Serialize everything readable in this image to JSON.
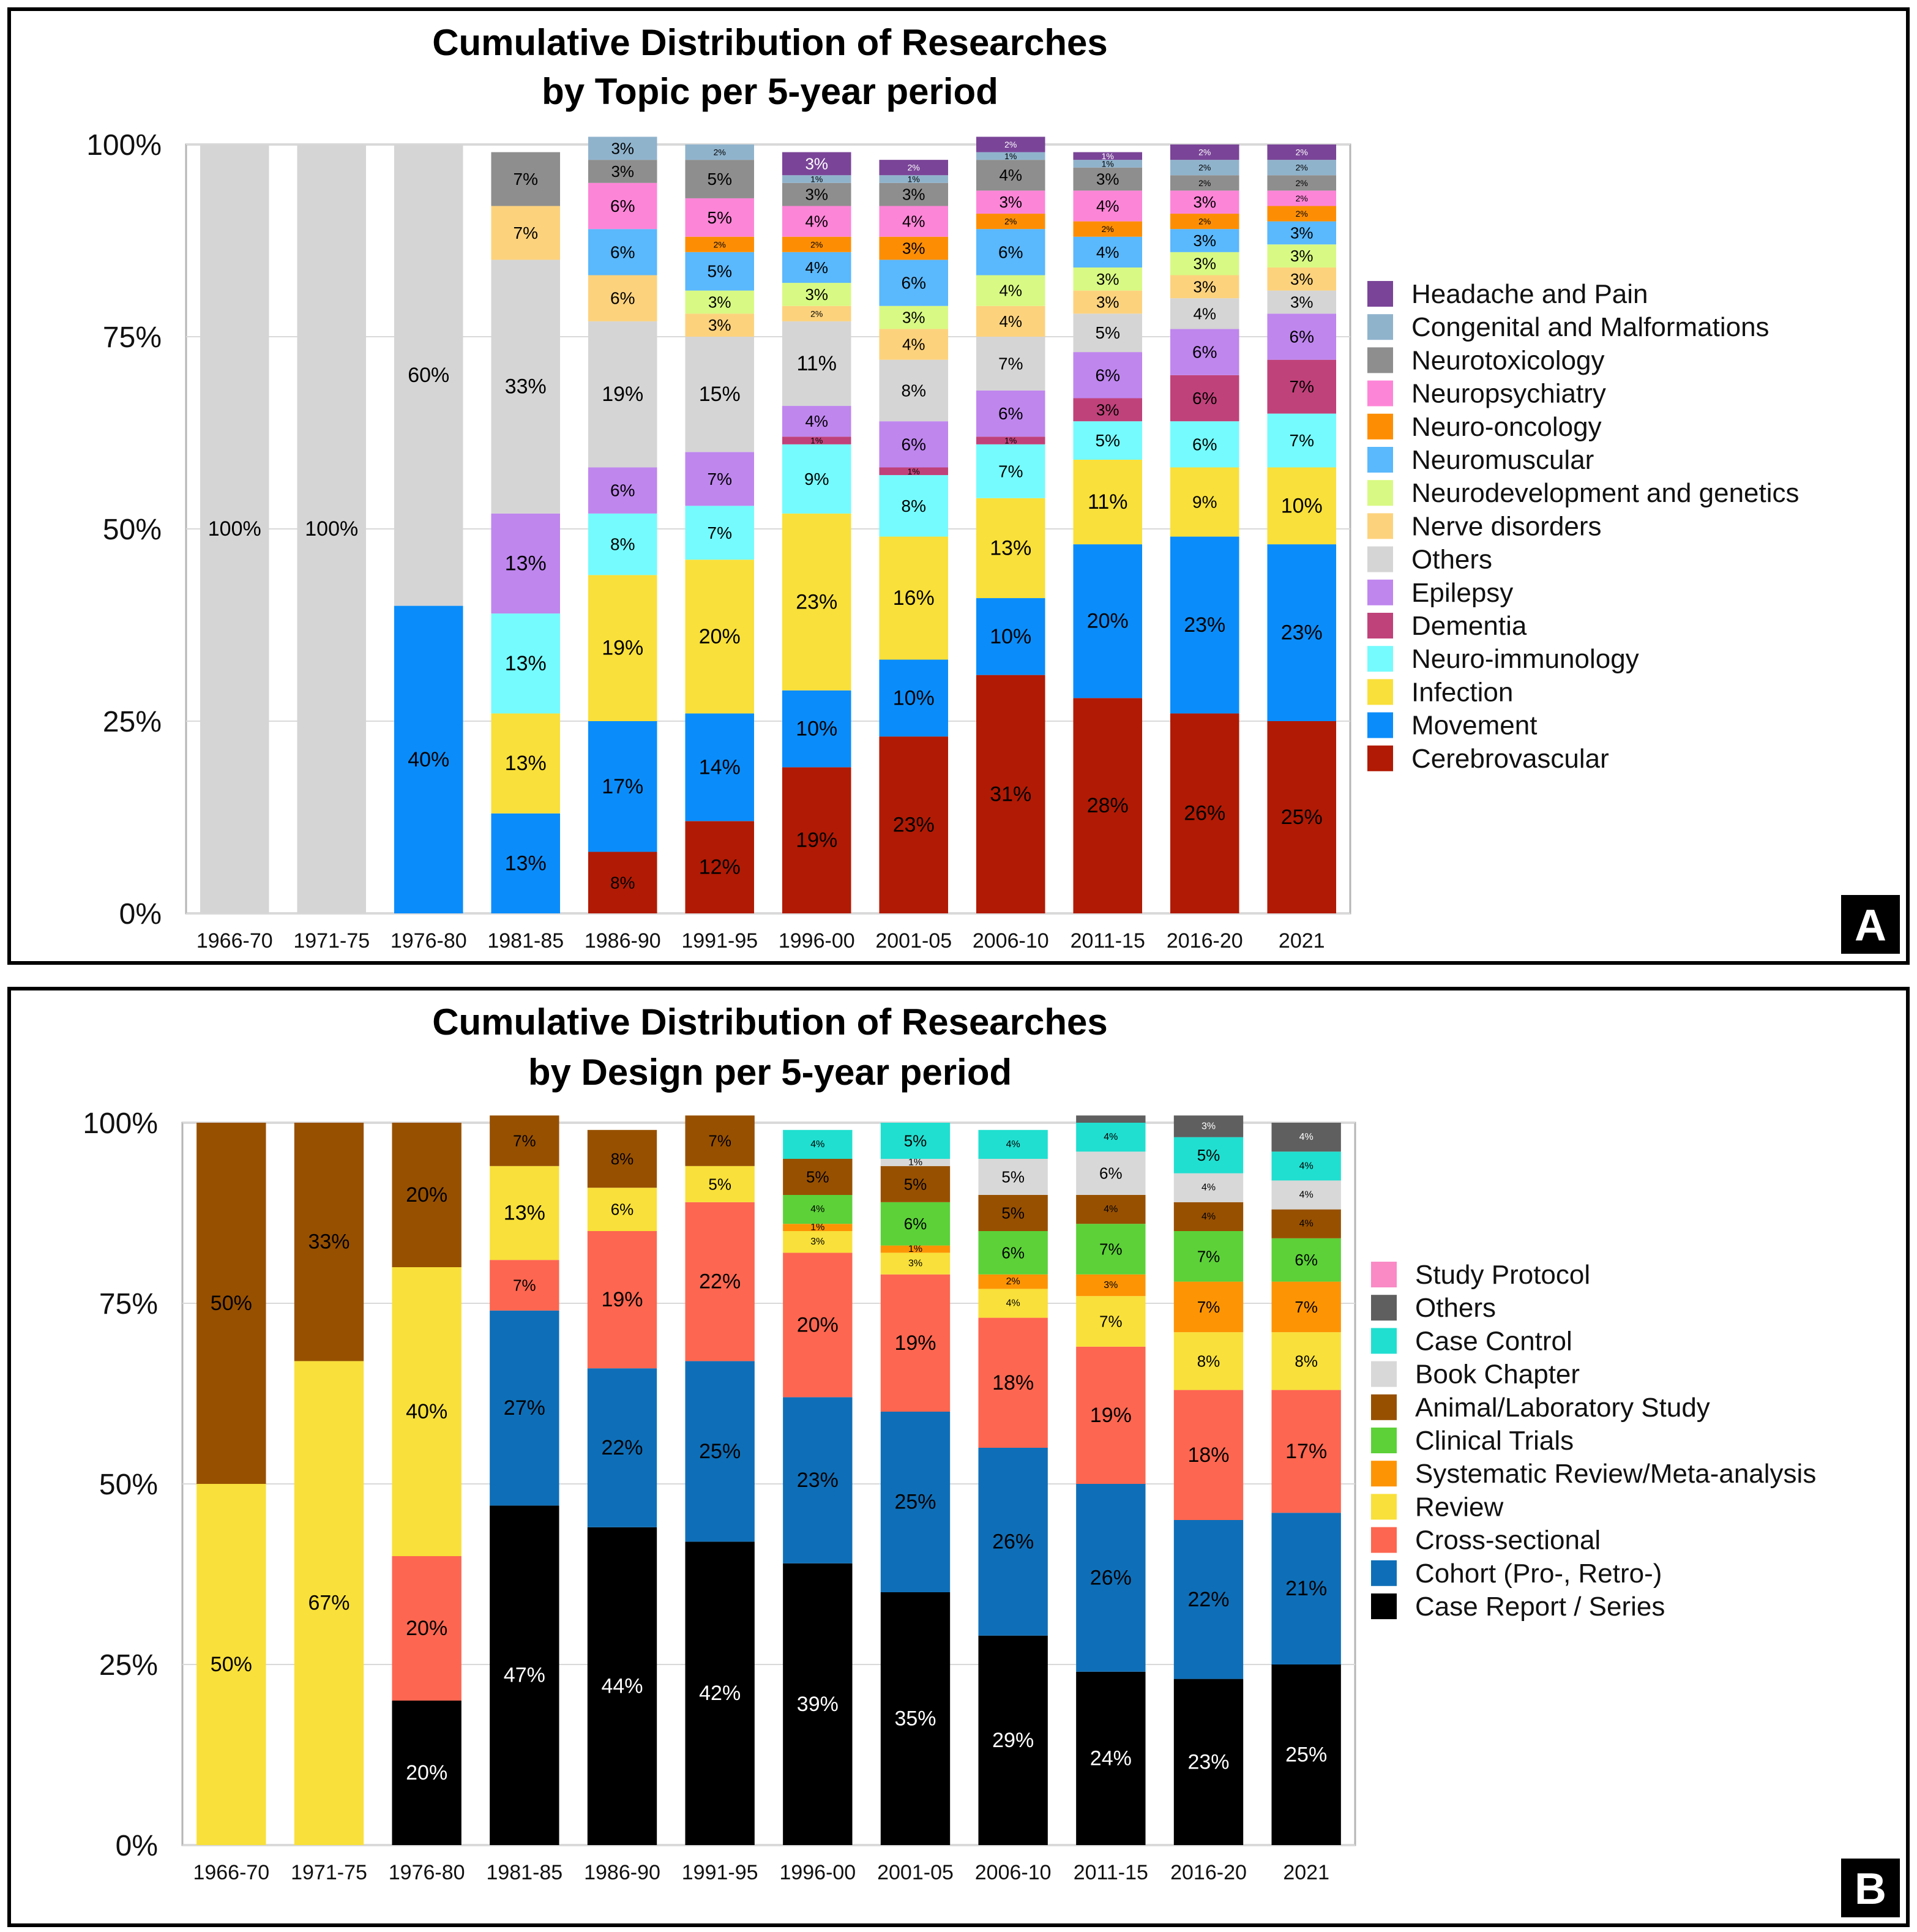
{
  "chart_data": [
    {
      "type": "bar",
      "stacked": true,
      "title_lines": [
        "Cumulative Distribution of Researches",
        "by Topic per 5-year period"
      ],
      "panel_letter": "A",
      "categories": [
        "1966-70",
        "1971-75",
        "1976-80",
        "1981-85",
        "1986-90",
        "1991-95",
        "1996-00",
        "2001-05",
        "2006-10",
        "2011-15",
        "2016-20",
        "2021"
      ],
      "y_ticks": [
        "0%",
        "25%",
        "50%",
        "75%",
        "100%"
      ],
      "ylim": [
        0,
        100
      ],
      "grid": true,
      "legend_position": "right",
      "series": [
        {
          "name": "Cerebrovascular",
          "color": "#b11a04",
          "label_color": "#000000",
          "values": [
            0,
            0,
            0,
            0,
            8,
            12,
            19,
            23,
            31,
            28,
            26,
            25
          ],
          "labels": [
            null,
            null,
            null,
            null,
            "8%",
            "12%",
            "19%",
            "23%",
            "31%",
            "28%",
            "26%",
            "25%"
          ]
        },
        {
          "name": "Movement",
          "color": "#0a8dfa",
          "label_color": "#000000",
          "values": [
            0,
            0,
            40,
            13,
            17,
            14,
            10,
            10,
            10,
            20,
            23,
            23
          ],
          "labels": [
            null,
            null,
            "40%",
            "13%",
            "17%",
            "14%",
            "10%",
            "10%",
            "10%",
            "20%",
            "23%",
            "23%"
          ]
        },
        {
          "name": "Infection",
          "color": "#f9e03a",
          "label_color": "#000000",
          "values": [
            0,
            0,
            0,
            13,
            19,
            20,
            23,
            16,
            13,
            11,
            9,
            10
          ],
          "labels": [
            null,
            null,
            null,
            "13%",
            "19%",
            "20%",
            "23%",
            "16%",
            "13%",
            "11%",
            "9%",
            "10%"
          ]
        },
        {
          "name": "Neuro-immunology",
          "color": "#75fbfd",
          "label_color": "#000000",
          "values": [
            0,
            0,
            0,
            13,
            8,
            7,
            9,
            8,
            7,
            5,
            6,
            7
          ],
          "labels": [
            null,
            null,
            null,
            "13%",
            "8%",
            "7%",
            "9%",
            "8%",
            "7%",
            "5%",
            "6%",
            "7%"
          ]
        },
        {
          "name": "Dementia",
          "color": "#c0427a",
          "label_color": "#000000",
          "values": [
            0,
            0,
            0,
            0,
            0,
            0,
            1,
            1,
            1,
            3,
            6,
            7
          ],
          "labels": [
            null,
            null,
            null,
            null,
            null,
            null,
            "1%",
            "1%",
            "1%",
            "3%",
            "6%",
            "7%"
          ]
        },
        {
          "name": "Epilepsy",
          "color": "#bf86ee",
          "label_color": "#000000",
          "values": [
            0,
            0,
            0,
            13,
            6,
            7,
            4,
            6,
            6,
            6,
            6,
            6
          ],
          "labels": [
            null,
            null,
            null,
            "13%",
            "6%",
            "7%",
            "4%",
            "6%",
            "6%",
            "6%",
            "6%",
            "6%"
          ]
        },
        {
          "name": "Others",
          "color": "#d5d5d5",
          "label_color": "#000000",
          "values": [
            100,
            100,
            60,
            33,
            19,
            15,
            11,
            8,
            7,
            5,
            4,
            3
          ],
          "labels": [
            "100%",
            "100%",
            "60%",
            "33%",
            "19%",
            "15%",
            "11%",
            "8%",
            "7%",
            "5%",
            "4%",
            "3%"
          ]
        },
        {
          "name": "Nerve disorders",
          "color": "#fcd27d",
          "label_color": "#000000",
          "values": [
            0,
            0,
            0,
            7,
            6,
            3,
            2,
            4,
            4,
            3,
            3,
            3
          ],
          "labels": [
            null,
            null,
            null,
            "7%",
            "6%",
            "3%",
            "2%",
            "4%",
            "4%",
            "3%",
            "3%",
            "3%"
          ]
        },
        {
          "name": "Neurodevelopment and genetics",
          "color": "#d8f983",
          "label_color": "#000000",
          "values": [
            0,
            0,
            0,
            0,
            0,
            3,
            3,
            3,
            4,
            3,
            3,
            3
          ],
          "labels": [
            null,
            null,
            null,
            null,
            null,
            "3%",
            "3%",
            "3%",
            "4%",
            "3%",
            "3%",
            "3%"
          ]
        },
        {
          "name": "Neuromuscular",
          "color": "#5ab8fc",
          "label_color": "#000000",
          "values": [
            0,
            0,
            0,
            0,
            6,
            5,
            4,
            6,
            6,
            4,
            3,
            3
          ],
          "labels": [
            null,
            null,
            null,
            null,
            "6%",
            "5%",
            "4%",
            "6%",
            "6%",
            "4%",
            "3%",
            "3%"
          ]
        },
        {
          "name": "Neuro-oncology",
          "color": "#fd8e04",
          "label_color": "#000000",
          "values": [
            0,
            0,
            0,
            0,
            0,
            2,
            2,
            3,
            2,
            2,
            2,
            2
          ],
          "labels": [
            null,
            null,
            null,
            null,
            null,
            "2%",
            "2%",
            "3%",
            "2%",
            "2%",
            "2%",
            "2%"
          ]
        },
        {
          "name": "Neuropsychiatry",
          "color": "#fd85d7",
          "label_color": "#000000",
          "values": [
            0,
            0,
            0,
            0,
            6,
            5,
            4,
            4,
            3,
            4,
            3,
            2
          ],
          "labels": [
            null,
            null,
            null,
            null,
            "6%",
            "5%",
            "4%",
            "4%",
            "3%",
            "4%",
            "3%",
            "2%"
          ]
        },
        {
          "name": "Neurotoxicology",
          "color": "#8e8e8e",
          "label_color": "#000000",
          "values": [
            0,
            0,
            0,
            7,
            3,
            5,
            3,
            3,
            4,
            3,
            2,
            2
          ],
          "labels": [
            null,
            null,
            null,
            "7%",
            "3%",
            "5%",
            "3%",
            "3%",
            "4%",
            "3%",
            "2%",
            "2%"
          ]
        },
        {
          "name": "Congenital and Malformations",
          "color": "#90b3cc",
          "label_color": "#000000",
          "values": [
            0,
            0,
            0,
            0,
            3,
            2,
            1,
            1,
            1,
            1,
            2,
            2
          ],
          "labels": [
            null,
            null,
            null,
            null,
            "3%",
            "2%",
            "1%",
            "1%",
            "1%",
            "1%",
            "2%",
            "2%"
          ]
        },
        {
          "name": "Headache and Pain",
          "color": "#7a4598",
          "label_color": "#ffffff",
          "values": [
            0,
            0,
            0,
            0,
            0,
            0,
            3,
            2,
            2,
            1,
            2,
            2
          ],
          "labels": [
            null,
            null,
            null,
            null,
            null,
            null,
            "3%",
            "2%",
            "2%",
            "1%",
            "2%",
            "2%"
          ]
        }
      ]
    },
    {
      "type": "bar",
      "stacked": true,
      "title_lines": [
        "Cumulative Distribution of Researches",
        "by Design per 5-year period"
      ],
      "panel_letter": "B",
      "categories": [
        "1966-70",
        "1971-75",
        "1976-80",
        "1981-85",
        "1986-90",
        "1991-95",
        "1996-00",
        "2001-05",
        "2006-10",
        "2011-15",
        "2016-20",
        "2021"
      ],
      "y_ticks": [
        "0%",
        "25%",
        "50%",
        "75%",
        "100%"
      ],
      "ylim": [
        0,
        100
      ],
      "grid": true,
      "legend_position": "right",
      "series": [
        {
          "name": "Case Report / Series",
          "color": "#000000",
          "label_color": "#ffffff",
          "values": [
            0,
            0,
            20,
            47,
            44,
            42,
            39,
            35,
            29,
            24,
            23,
            25
          ],
          "labels": [
            null,
            null,
            "20%",
            "47%",
            "44%",
            "42%",
            "39%",
            "35%",
            "29%",
            "24%",
            "23%",
            "25%"
          ]
        },
        {
          "name": "Cohort (Pro-, Retro-)",
          "color": "#0e6fb8",
          "label_color": "#000000",
          "values": [
            0,
            0,
            0,
            27,
            22,
            25,
            23,
            25,
            26,
            26,
            22,
            21
          ],
          "labels": [
            null,
            null,
            null,
            "27%",
            "22%",
            "25%",
            "23%",
            "25%",
            "26%",
            "26%",
            "22%",
            "21%"
          ]
        },
        {
          "name": "Cross-sectional",
          "color": "#fd6650",
          "label_color": "#000000",
          "values": [
            0,
            0,
            20,
            7,
            19,
            22,
            20,
            19,
            18,
            19,
            18,
            17
          ],
          "labels": [
            null,
            null,
            "20%",
            "7%",
            "19%",
            "22%",
            "20%",
            "19%",
            "18%",
            "19%",
            "18%",
            "17%"
          ]
        },
        {
          "name": "Review",
          "color": "#f9e03a",
          "label_color": "#000000",
          "values": [
            50,
            67,
            40,
            13,
            6,
            5,
            3,
            3,
            4,
            7,
            8,
            8
          ],
          "labels": [
            "50%",
            "67%",
            "40%",
            "13%",
            "6%",
            "5%",
            "3%",
            "3%",
            "4%",
            "7%",
            "8%",
            "8%"
          ]
        },
        {
          "name": "Systematic Review/Meta-analysis",
          "color": "#fd9404",
          "label_color": "#000000",
          "values": [
            0,
            0,
            0,
            0,
            0,
            0,
            1,
            1,
            2,
            3,
            7,
            7
          ],
          "labels": [
            null,
            null,
            null,
            null,
            null,
            null,
            "1%",
            "1%",
            "2%",
            "3%",
            "7%",
            "7%"
          ]
        },
        {
          "name": "Clinical Trials",
          "color": "#5cd138",
          "label_color": "#000000",
          "values": [
            0,
            0,
            0,
            0,
            0,
            0,
            4,
            6,
            6,
            7,
            7,
            6
          ],
          "labels": [
            null,
            null,
            null,
            null,
            null,
            null,
            "4%",
            "6%",
            "6%",
            "7%",
            "7%",
            "6%"
          ]
        },
        {
          "name": "Animal/Laboratory Study",
          "color": "#975000",
          "label_color": "#000000",
          "values": [
            50,
            33,
            20,
            7,
            8,
            7,
            5,
            5,
            5,
            4,
            4,
            4
          ],
          "labels": [
            "50%",
            "33%",
            "20%",
            "7%",
            "8%",
            "7%",
            "5%",
            "5%",
            "5%",
            "4%",
            "4%",
            "4%"
          ]
        },
        {
          "name": "Book Chapter",
          "color": "#d8d8d8",
          "label_color": "#000000",
          "values": [
            0,
            0,
            0,
            0,
            0,
            0,
            0,
            1,
            5,
            6,
            4,
            4
          ],
          "labels": [
            null,
            null,
            null,
            null,
            null,
            null,
            null,
            "1%",
            "5%",
            "6%",
            "4%",
            "4%"
          ]
        },
        {
          "name": "Case Control",
          "color": "#20dfd0",
          "label_color": "#000000",
          "values": [
            0,
            0,
            0,
            0,
            0,
            0,
            4,
            5,
            4,
            4,
            5,
            4
          ],
          "labels": [
            null,
            null,
            null,
            null,
            null,
            null,
            "4%",
            "5%",
            "4%",
            "4%",
            "5%",
            "4%"
          ]
        },
        {
          "name": "Others",
          "color": "#5f5f5f",
          "label_color": "#ffffff",
          "values": [
            0,
            0,
            0,
            0,
            0,
            0,
            0,
            0,
            0,
            1,
            3,
            4
          ],
          "labels": [
            null,
            null,
            null,
            null,
            null,
            null,
            null,
            null,
            null,
            null,
            "3%",
            "4%"
          ]
        },
        {
          "name": "Study Protocol",
          "color": "#f98ac6",
          "label_color": "#000000",
          "values": [
            0,
            0,
            0,
            0,
            0,
            0,
            0,
            0,
            0,
            0,
            0,
            0
          ],
          "labels": [
            null,
            null,
            null,
            null,
            null,
            null,
            null,
            null,
            null,
            null,
            null,
            null
          ]
        }
      ]
    }
  ]
}
